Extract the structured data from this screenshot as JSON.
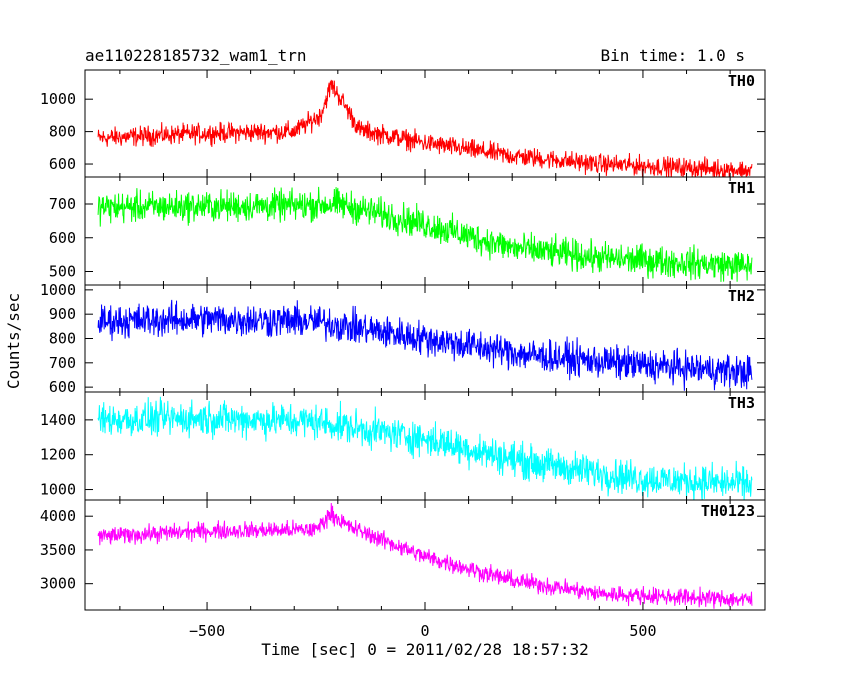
{
  "chart_data": {
    "type": "line",
    "title": "ae110228185732_wam1_trn",
    "bin_time_label": "Bin time: 1.0 s",
    "xlabel": "Time [sec] 0 = 2011/02/28 18:57:32",
    "ylabel": "Counts/sec",
    "xlim": [
      -780,
      780
    ],
    "xticks": [
      -500,
      0,
      500
    ],
    "xtick_labels": [
      "−500",
      "0",
      "500"
    ],
    "grid": false,
    "panels": [
      {
        "name": "TH0",
        "color": "#ff0000",
        "ylim": [
          520,
          1180
        ],
        "yticks": [
          600,
          800,
          1000
        ],
        "trend": [
          [
            -750,
            760
          ],
          [
            -500,
            790
          ],
          [
            -300,
            800
          ],
          [
            -240,
            900
          ],
          [
            -215,
            1090
          ],
          [
            -190,
            990
          ],
          [
            -150,
            810
          ],
          [
            0,
            730
          ],
          [
            200,
            650
          ],
          [
            400,
            600
          ],
          [
            750,
            560
          ]
        ],
        "noise": 80
      },
      {
        "name": "TH1",
        "color": "#00ff00",
        "ylim": [
          460,
          780
        ],
        "yticks": [
          500,
          600,
          700
        ],
        "trend": [
          [
            -750,
            690
          ],
          [
            -300,
            695
          ],
          [
            -200,
            700
          ],
          [
            0,
            640
          ],
          [
            200,
            570
          ],
          [
            400,
            540
          ],
          [
            750,
            515
          ]
        ],
        "noise": 60
      },
      {
        "name": "TH2",
        "color": "#0000ff",
        "ylim": [
          580,
          1020
        ],
        "yticks": [
          600,
          700,
          800,
          900,
          1000
        ],
        "trend": [
          [
            -750,
            870
          ],
          [
            -500,
            880
          ],
          [
            -250,
            870
          ],
          [
            0,
            800
          ],
          [
            250,
            730
          ],
          [
            500,
            690
          ],
          [
            750,
            660
          ]
        ],
        "noise": 90
      },
      {
        "name": "TH3",
        "color": "#00ffff",
        "ylim": [
          940,
          1560
        ],
        "yticks": [
          1000,
          1200,
          1400
        ],
        "trend": [
          [
            -750,
            1400
          ],
          [
            -500,
            1410
          ],
          [
            -250,
            1390
          ],
          [
            0,
            1290
          ],
          [
            250,
            1150
          ],
          [
            500,
            1060
          ],
          [
            750,
            1030
          ]
        ],
        "noise": 130
      },
      {
        "name": "TH0123",
        "color": "#ff00ff",
        "ylim": [
          2610,
          4240
        ],
        "yticks": [
          3000,
          3500,
          4000
        ],
        "trend": [
          [
            -750,
            3700
          ],
          [
            -500,
            3780
          ],
          [
            -250,
            3800
          ],
          [
            -215,
            4050
          ],
          [
            -180,
            3860
          ],
          [
            0,
            3400
          ],
          [
            200,
            3050
          ],
          [
            400,
            2850
          ],
          [
            750,
            2760
          ]
        ],
        "noise": 170
      }
    ]
  }
}
